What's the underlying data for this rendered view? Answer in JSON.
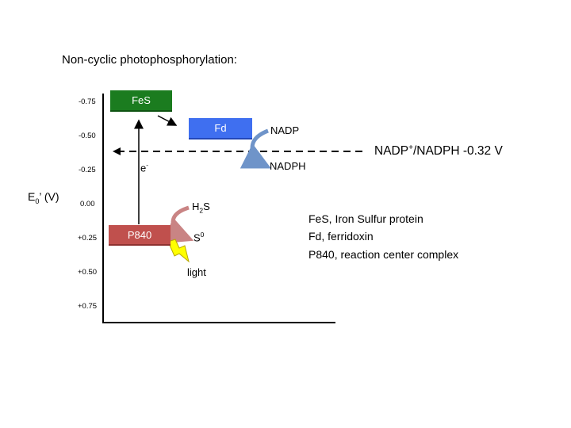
{
  "title": "Non-cyclic photophosphorylation:",
  "y_axis": {
    "label_main": "E",
    "label_sub": "0",
    "label_rest": "’ (V)",
    "ticks": [
      "-0.75",
      "-0.50",
      "-0.25",
      "0.00",
      "+0.25",
      "+0.50",
      "+0.75"
    ]
  },
  "components": {
    "fes": "FeS",
    "fd": "Fd",
    "p840": "P840"
  },
  "labels": {
    "electron_main": "e",
    "electron_sup": "-",
    "nadp": "NADP",
    "nadph": "NADPH",
    "h2s_h": "H",
    "h2s_sub": "2",
    "h2s_s": "S",
    "s0_main": "S",
    "s0_sup": "0",
    "light": "light"
  },
  "nadp_redox": {
    "part1": "NADP",
    "sup": "+",
    "part2": "/NADPH -0.32 V"
  },
  "legend": [
    "FeS, Iron Sulfur protein",
    "Fd, ferridoxin",
    "P840, reaction center complex"
  ],
  "colors": {
    "fes": "#1b7c1f",
    "fd": "#3f6ff0",
    "p840": "#c0504d",
    "lightning": "#ffff00",
    "nadp_arrow": "#6f94c9",
    "h2s_arrow": "#c98484"
  }
}
